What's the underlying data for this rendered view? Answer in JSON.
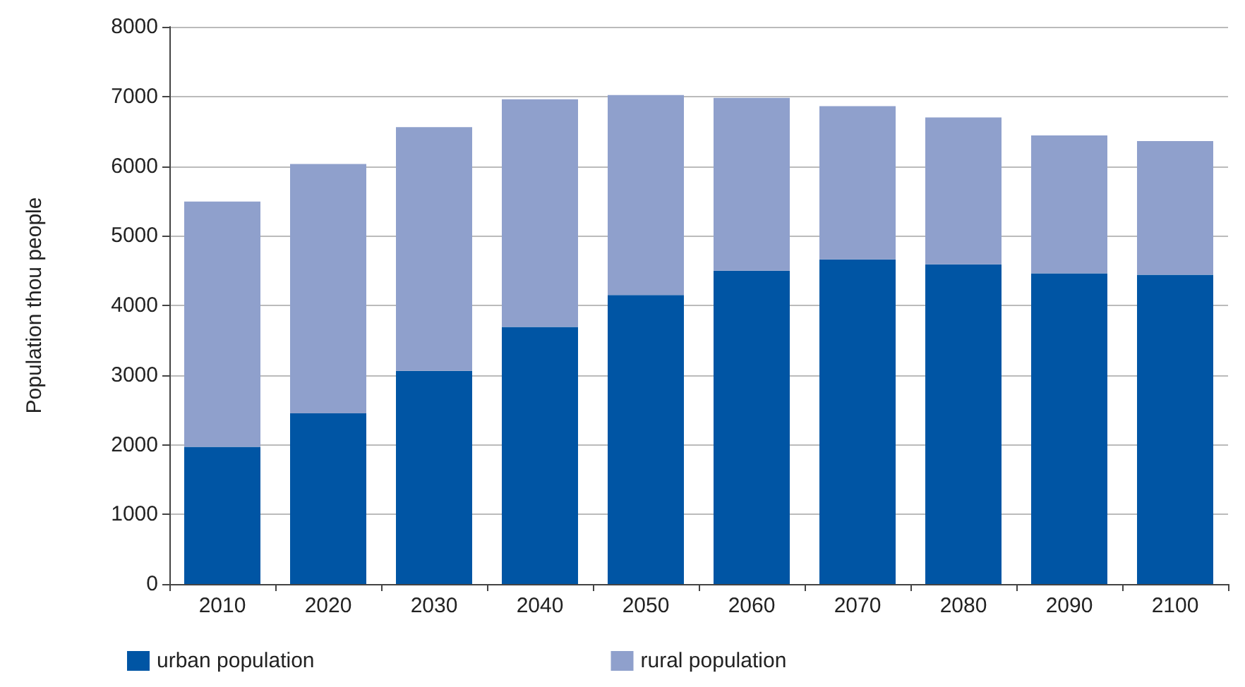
{
  "chart_data": {
    "type": "bar",
    "stacked": true,
    "ylabel": "Population thou people",
    "categories": [
      "2010",
      "2020",
      "2030",
      "2040",
      "2050",
      "2060",
      "2070",
      "2080",
      "2090",
      "2100"
    ],
    "series": [
      {
        "name": "urban population",
        "color": "#0055a4",
        "values": [
          1970,
          2450,
          3060,
          3690,
          4150,
          4500,
          4660,
          4590,
          4460,
          4440
        ]
      },
      {
        "name": "rural population",
        "color": "#8fa0cc",
        "values": [
          3520,
          3580,
          3500,
          3270,
          2870,
          2480,
          2200,
          2110,
          1980,
          1920
        ]
      }
    ],
    "ylim": [
      0,
      8000
    ],
    "yticks": [
      0,
      1000,
      2000,
      3000,
      4000,
      5000,
      6000,
      7000,
      8000
    ],
    "grid": "y",
    "legend": "bottom left"
  }
}
